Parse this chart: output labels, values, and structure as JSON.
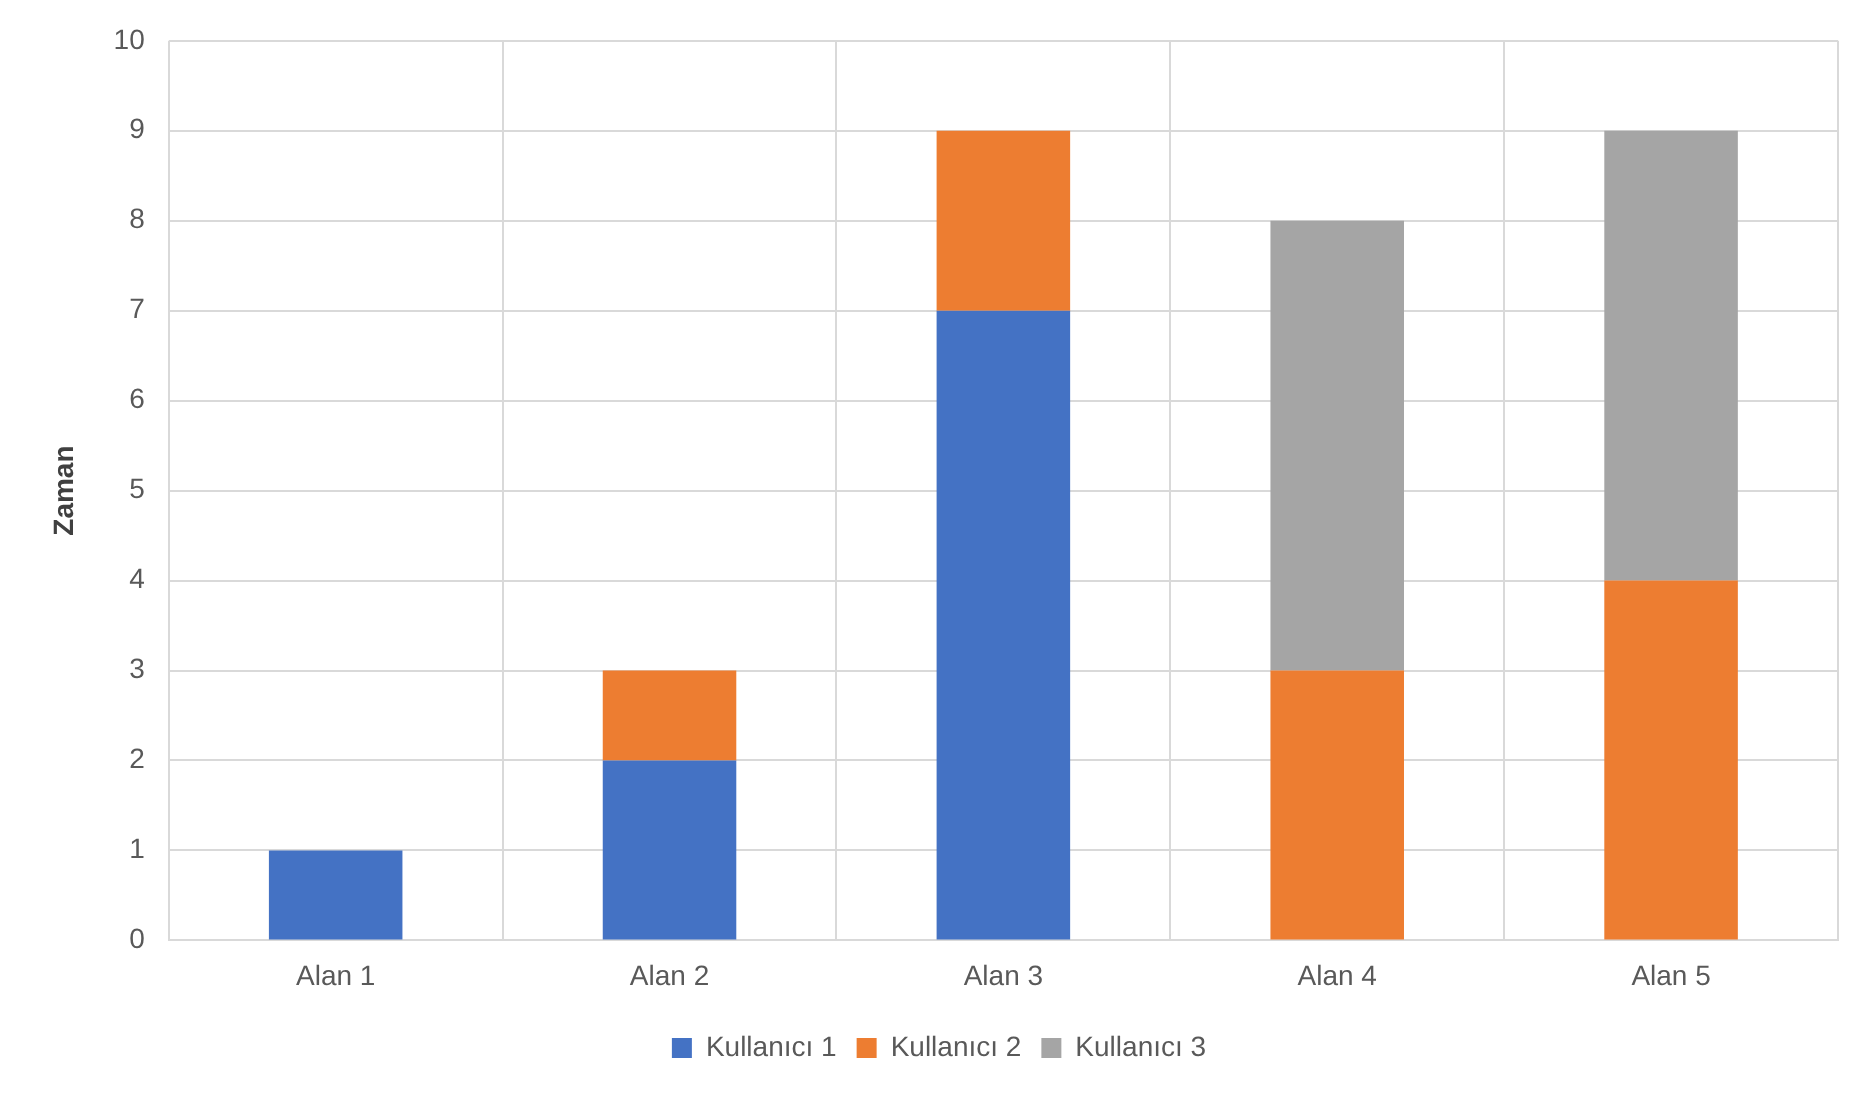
{
  "chart_data": {
    "type": "bar",
    "ylabel": "Zaman",
    "categories": [
      "Alan 1",
      "Alan 2",
      "Alan 3",
      "Alan 4",
      "Alan 5"
    ],
    "series": [
      {
        "name": "Kullanıcı 1",
        "color": "#4472c4",
        "values": [
          1,
          2,
          7,
          0,
          0
        ]
      },
      {
        "name": "Kullanıcı 2",
        "color": "#ed7d31",
        "values": [
          0,
          1,
          2,
          3,
          4
        ]
      },
      {
        "name": "Kullanıcı 3",
        "color": "#a5a5a5",
        "values": [
          0,
          0,
          0,
          5,
          5
        ]
      }
    ],
    "stacked": true,
    "ylim": [
      0,
      10
    ],
    "yticks": [
      0,
      1,
      2,
      3,
      4,
      5,
      6,
      7,
      8,
      9,
      10
    ],
    "grid": true,
    "legend": "bottom"
  }
}
